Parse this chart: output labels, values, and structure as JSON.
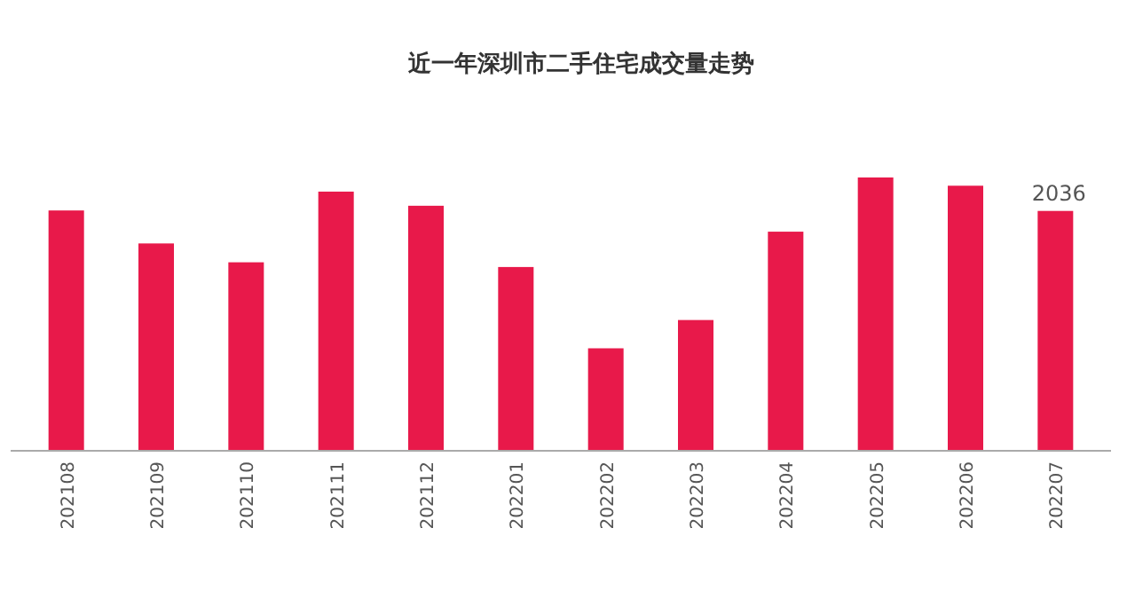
{
  "chart_data": {
    "type": "bar",
    "title": "近一年深圳市二手住宅成交量走势",
    "categories": [
      "202108",
      "202109",
      "202110",
      "202111",
      "202112",
      "202201",
      "202202",
      "202203",
      "202204",
      "202205",
      "202206",
      "202207"
    ],
    "values": [
      2040,
      1760,
      1600,
      2200,
      2080,
      1560,
      870,
      1110,
      1860,
      2320,
      2250,
      2036
    ],
    "value_labels": [
      null,
      null,
      null,
      null,
      null,
      null,
      null,
      null,
      null,
      null,
      null,
      "2036"
    ],
    "color": "#e8194a",
    "grid": false
  }
}
